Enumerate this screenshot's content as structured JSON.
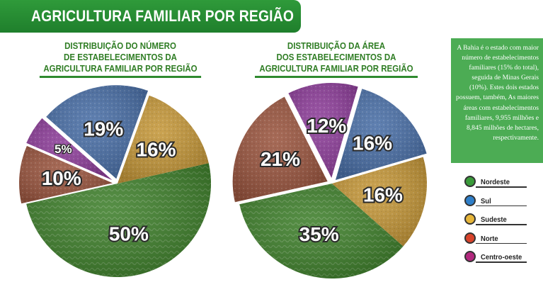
{
  "page_title": "AGRICULTURA FAMILIAR POR REGIÃO",
  "info_text": "A Bahia é o estado com maior número de estabelecimentos familiares (15% do total), seguida de Minas Gerais (10%). Estes dois estados possuem, também, As maiores áreas com estabelecimentos familiares, 9,955 milhões e 8,845 milhões de hectares, respectivamente.",
  "legend": [
    {
      "label": "Nordeste",
      "color": "#3a9a3a"
    },
    {
      "label": "Sul",
      "color": "#2f7fc9"
    },
    {
      "label": "Sudeste",
      "color": "#e6b53a"
    },
    {
      "label": "Norte",
      "color": "#d8432b"
    },
    {
      "label": "Centro-oeste",
      "color": "#b2287e"
    }
  ],
  "chart_data": [
    {
      "type": "pie",
      "title": "DISTRIBUIÇÃO DO NÚMERO DE ESTABELECIMENTOS DA AGRICULTURA FAMILIAR POR REGIÃO",
      "title_lines": [
        "DISTRIBUIÇÃO DO NÚMERO",
        "DE ESTABELECIMENTOS DA",
        "AGRICULTURA FAMILIAR POR REGIÃO"
      ],
      "slices": [
        {
          "region": "Nordeste",
          "value": 50,
          "label": "50%",
          "color": "#3f7f2c"
        },
        {
          "region": "Sudeste",
          "value": 16,
          "label": "16%",
          "color": "#c4973a"
        },
        {
          "region": "Sul",
          "value": 19,
          "label": "19%",
          "color": "#4a6fa6"
        },
        {
          "region": "Centro-oeste",
          "value": 5,
          "label": "5%",
          "color": "#8e3f9a"
        },
        {
          "region": "Norte",
          "value": 10,
          "label": "10%",
          "color": "#9a5640"
        }
      ]
    },
    {
      "type": "pie",
      "title": "DISTRIBUIÇÃO DA ÁREA DOS ESTABELECIMENTOS DA AGRICULTURA FAMILIAR POR REGIÃO",
      "title_lines": [
        "DISTRIBUIÇÃO DA ÁREA",
        "DOS ESTABELECIMENTOS DA",
        "AGRICULTURA FAMILIAR POR REGIÃO"
      ],
      "slices": [
        {
          "region": "Nordeste",
          "value": 35,
          "label": "35%",
          "color": "#3f7f2c"
        },
        {
          "region": "Sudeste",
          "value": 16,
          "label": "16%",
          "color": "#c4973a"
        },
        {
          "region": "Sul",
          "value": 16,
          "label": "16%",
          "color": "#4a6fa6"
        },
        {
          "region": "Centro-oeste",
          "value": 12,
          "label": "12%",
          "color": "#8e3f9a"
        },
        {
          "region": "Norte",
          "value": 21,
          "label": "21%",
          "color": "#9a5640"
        }
      ]
    }
  ]
}
